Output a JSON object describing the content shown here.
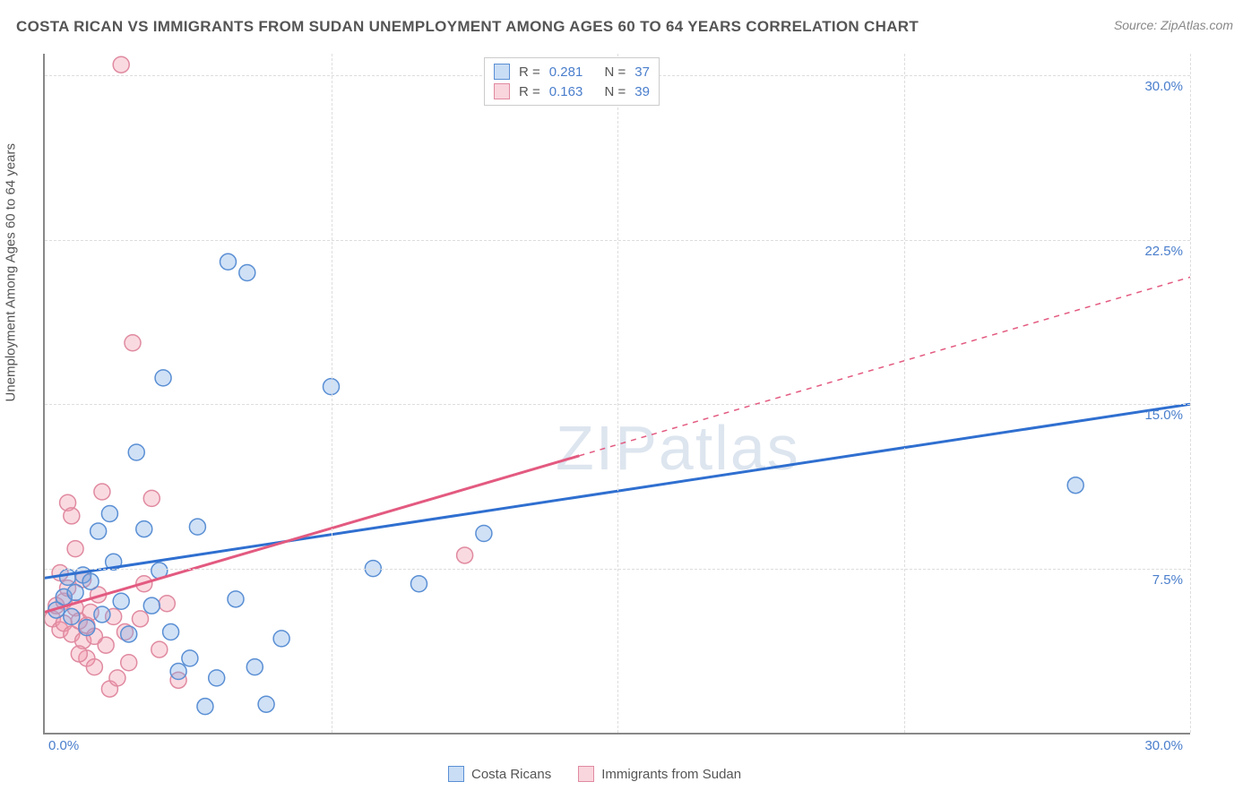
{
  "title": "COSTA RICAN VS IMMIGRANTS FROM SUDAN UNEMPLOYMENT AMONG AGES 60 TO 64 YEARS CORRELATION CHART",
  "source": "Source: ZipAtlas.com",
  "ylabel": "Unemployment Among Ages 60 to 64 years",
  "watermark_a": "ZIP",
  "watermark_b": "atlas",
  "chart": {
    "type": "scatter",
    "xlim": [
      0,
      30
    ],
    "ylim": [
      0,
      31
    ],
    "x_ticks": [
      0,
      30
    ],
    "x_tick_labels": [
      "0.0%",
      "30.0%"
    ],
    "y_ticks": [
      7.5,
      15.0,
      22.5,
      30.0
    ],
    "y_tick_labels": [
      "7.5%",
      "15.0%",
      "22.5%",
      "30.0%"
    ],
    "v_gridlines": [
      7.5,
      15.0,
      22.5,
      30.0
    ],
    "grid_color": "#dddddd",
    "background_color": "#ffffff",
    "axis_color": "#888888",
    "marker_radius": 9,
    "marker_stroke_width": 1.5,
    "trend_width": 3
  },
  "stats": [
    {
      "color": "blue",
      "r_label": "R =",
      "r": "0.281",
      "n_label": "N =",
      "n": "37"
    },
    {
      "color": "pink",
      "r_label": "R =",
      "r": "0.163",
      "n_label": "N =",
      "n": "39"
    }
  ],
  "legend": [
    {
      "color": "blue",
      "label": "Costa Ricans"
    },
    {
      "color": "pink",
      "label": "Immigrants from Sudan"
    }
  ],
  "series": {
    "blue": {
      "fill": "rgba(120,170,230,0.35)",
      "stroke": "#5a8fd4",
      "trend_color": "#2f6fd0",
      "trend": {
        "x1": -1.0,
        "y1": 6.8,
        "x2": 30.0,
        "y2": 15.0
      },
      "points": [
        [
          0.3,
          5.6
        ],
        [
          0.5,
          6.2
        ],
        [
          0.6,
          7.1
        ],
        [
          0.7,
          5.3
        ],
        [
          0.8,
          6.4
        ],
        [
          1.0,
          7.2
        ],
        [
          1.1,
          4.8
        ],
        [
          1.2,
          6.9
        ],
        [
          1.4,
          9.2
        ],
        [
          1.5,
          5.4
        ],
        [
          1.7,
          10.0
        ],
        [
          1.8,
          7.8
        ],
        [
          2.0,
          6.0
        ],
        [
          2.2,
          4.5
        ],
        [
          2.4,
          12.8
        ],
        [
          2.6,
          9.3
        ],
        [
          2.8,
          5.8
        ],
        [
          3.0,
          7.4
        ],
        [
          3.1,
          16.2
        ],
        [
          3.3,
          4.6
        ],
        [
          3.5,
          2.8
        ],
        [
          3.8,
          3.4
        ],
        [
          4.0,
          9.4
        ],
        [
          4.2,
          1.2
        ],
        [
          4.5,
          2.5
        ],
        [
          4.8,
          21.5
        ],
        [
          5.0,
          6.1
        ],
        [
          5.3,
          21.0
        ],
        [
          5.5,
          3.0
        ],
        [
          5.8,
          1.3
        ],
        [
          6.2,
          4.3
        ],
        [
          7.5,
          15.8
        ],
        [
          8.6,
          7.5
        ],
        [
          9.8,
          6.8
        ],
        [
          11.5,
          9.1
        ],
        [
          27.0,
          11.3
        ]
      ]
    },
    "pink": {
      "fill": "rgba(240,150,170,0.35)",
      "stroke": "#e08aa0",
      "trend_color": "#e35a80",
      "trend_solid_end_x": 14.0,
      "trend": {
        "x1": -1.0,
        "y1": 5.0,
        "x2": 30.0,
        "y2": 20.8
      },
      "points": [
        [
          0.2,
          5.2
        ],
        [
          0.3,
          5.8
        ],
        [
          0.4,
          4.7
        ],
        [
          0.5,
          6.0
        ],
        [
          0.5,
          5.0
        ],
        [
          0.6,
          10.5
        ],
        [
          0.7,
          4.5
        ],
        [
          0.7,
          9.9
        ],
        [
          0.8,
          5.7
        ],
        [
          0.9,
          5.1
        ],
        [
          1.0,
          4.2
        ],
        [
          1.0,
          7.0
        ],
        [
          1.1,
          3.4
        ],
        [
          1.2,
          5.5
        ],
        [
          1.3,
          3.0
        ],
        [
          1.4,
          6.3
        ],
        [
          1.5,
          11.0
        ],
        [
          1.6,
          4.0
        ],
        [
          1.7,
          2.0
        ],
        [
          1.8,
          5.3
        ],
        [
          1.9,
          2.5
        ],
        [
          2.0,
          30.5
        ],
        [
          2.1,
          4.6
        ],
        [
          2.2,
          3.2
        ],
        [
          2.3,
          17.8
        ],
        [
          2.5,
          5.2
        ],
        [
          2.6,
          6.8
        ],
        [
          2.8,
          10.7
        ],
        [
          3.0,
          3.8
        ],
        [
          3.2,
          5.9
        ],
        [
          3.5,
          2.4
        ],
        [
          0.9,
          3.6
        ],
        [
          1.1,
          4.9
        ],
        [
          0.6,
          6.6
        ],
        [
          0.4,
          7.3
        ],
        [
          1.3,
          4.4
        ],
        [
          0.8,
          8.4
        ],
        [
          11.0,
          8.1
        ]
      ]
    }
  }
}
